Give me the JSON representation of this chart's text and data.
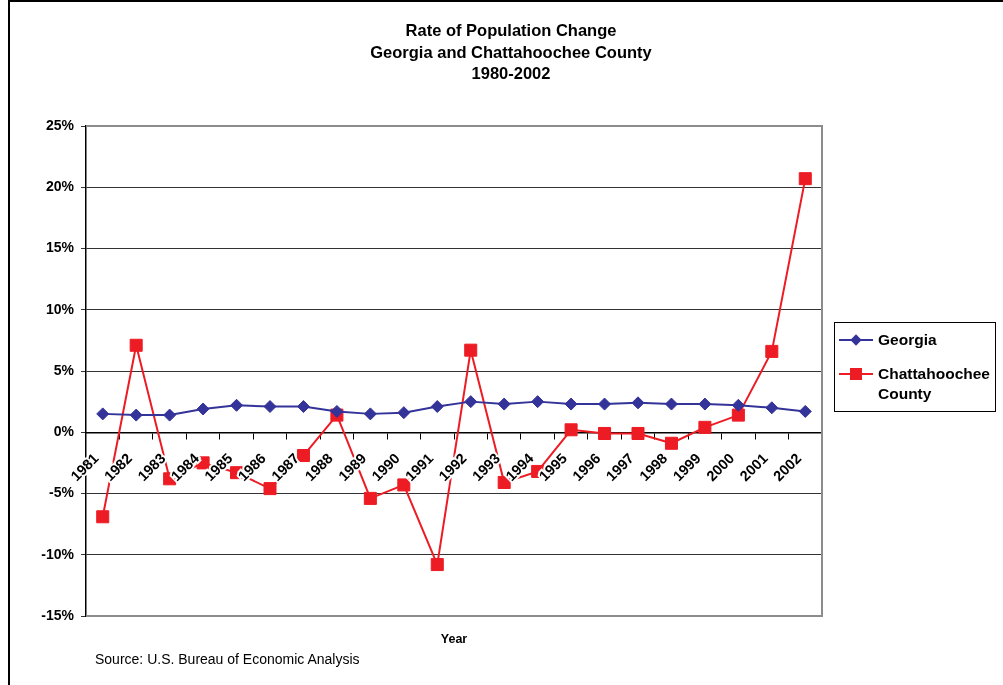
{
  "chart_data": {
    "type": "line",
    "title": "Rate of Population Change\nGeorgia and Chattahoochee County\n1980-2002",
    "xlabel": "Year",
    "annotations": [
      "Source: U.S. Bureau of Economic Analysis"
    ],
    "categories": [
      "1981",
      "1982",
      "1983",
      "1984",
      "1985",
      "1986",
      "1987",
      "1988",
      "1989",
      "1990",
      "1991",
      "1992",
      "1993",
      "1994",
      "1995",
      "1996",
      "1997",
      "1998",
      "1999",
      "2000",
      "2001",
      "2002"
    ],
    "series": [
      {
        "name": "Georgia",
        "color": "#333399",
        "marker": "diamond",
        "values": [
          1.5,
          1.4,
          1.4,
          1.9,
          2.2,
          2.1,
          2.1,
          1.7,
          1.5,
          1.6,
          2.1,
          2.5,
          2.3,
          2.5,
          2.3,
          2.3,
          2.4,
          2.3,
          2.3,
          2.2,
          2.0,
          1.7
        ]
      },
      {
        "name": "Chattahoochee County",
        "color": "#ed1c24",
        "marker": "square",
        "values": [
          -6.9,
          7.1,
          -3.8,
          -2.5,
          -3.3,
          -4.6,
          -1.9,
          1.4,
          -5.4,
          -4.3,
          -10.8,
          6.7,
          -4.1,
          -3.2,
          0.2,
          -0.1,
          -0.1,
          -0.9,
          0.4,
          1.4,
          6.6,
          20.7
        ]
      }
    ],
    "ylim": [
      -15,
      25
    ],
    "yticks": [
      {
        "value": -15,
        "label": "-15%"
      },
      {
        "value": -10,
        "label": "-10%"
      },
      {
        "value": -5,
        "label": "-5%"
      },
      {
        "value": 0,
        "label": "0%"
      },
      {
        "value": 5,
        "label": "5%"
      },
      {
        "value": 10,
        "label": "10%"
      },
      {
        "value": 15,
        "label": "15%"
      },
      {
        "value": 20,
        "label": "20%"
      },
      {
        "value": 25,
        "label": "25%"
      }
    ],
    "grid": "y",
    "legend": "right",
    "line_style": "solid"
  }
}
